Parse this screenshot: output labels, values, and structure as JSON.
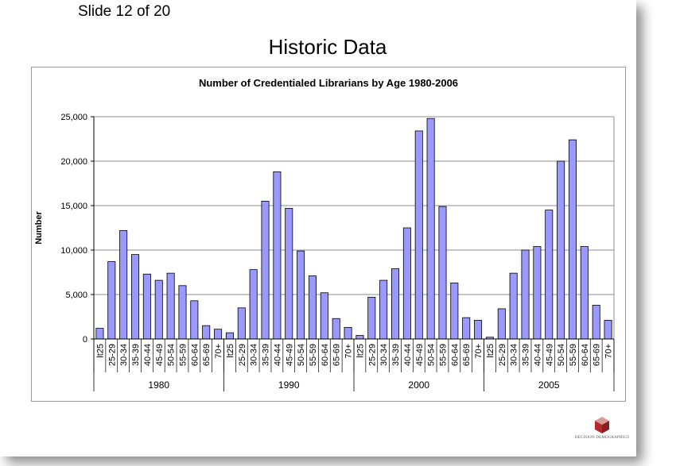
{
  "slide": {
    "counter": "Slide 12 of 20",
    "title": "Historic Data",
    "logo_text": "DECISION DEMOGRAPHICS"
  },
  "colors": {
    "bar_fill": "#9999ff",
    "bar_stroke": "#000000",
    "gridline": "#8c8c8c",
    "logo_red": "#b02a2e",
    "logo_pink": "#d99a9c"
  },
  "chart_data": {
    "type": "bar",
    "title": "Number of Credentialed Librarians by Age 1980-2006",
    "xlabel": "",
    "ylabel": "Number",
    "ylim": [
      0,
      25000
    ],
    "yticks": [
      "0",
      "5,000",
      "10,000",
      "15,000",
      "20,000",
      "25,000"
    ],
    "ytick_values": [
      0,
      5000,
      10000,
      15000,
      20000,
      25000
    ],
    "grid": true,
    "legend": "none",
    "age_groups": [
      "lt25",
      "25-29",
      "30-34",
      "35-39",
      "40-44",
      "45-49",
      "50-54",
      "55-59",
      "60-64",
      "65-69",
      "70+"
    ],
    "groups": [
      {
        "label": "1980",
        "values": [
          1200,
          8700,
          12200,
          9500,
          7300,
          6600,
          7400,
          6000,
          4300,
          1500,
          1100
        ]
      },
      {
        "label": "1990",
        "values": [
          700,
          3500,
          7800,
          15500,
          18800,
          14700,
          9900,
          7100,
          5200,
          2300,
          1300
        ]
      },
      {
        "label": "2000",
        "values": [
          400,
          4700,
          6600,
          7900,
          12500,
          23400,
          24800,
          14900,
          6300,
          2400,
          2100
        ]
      },
      {
        "label": "2005",
        "values": [
          200,
          3400,
          7400,
          10000,
          10400,
          14500,
          20000,
          22400,
          10400,
          3800,
          2100
        ]
      }
    ]
  }
}
